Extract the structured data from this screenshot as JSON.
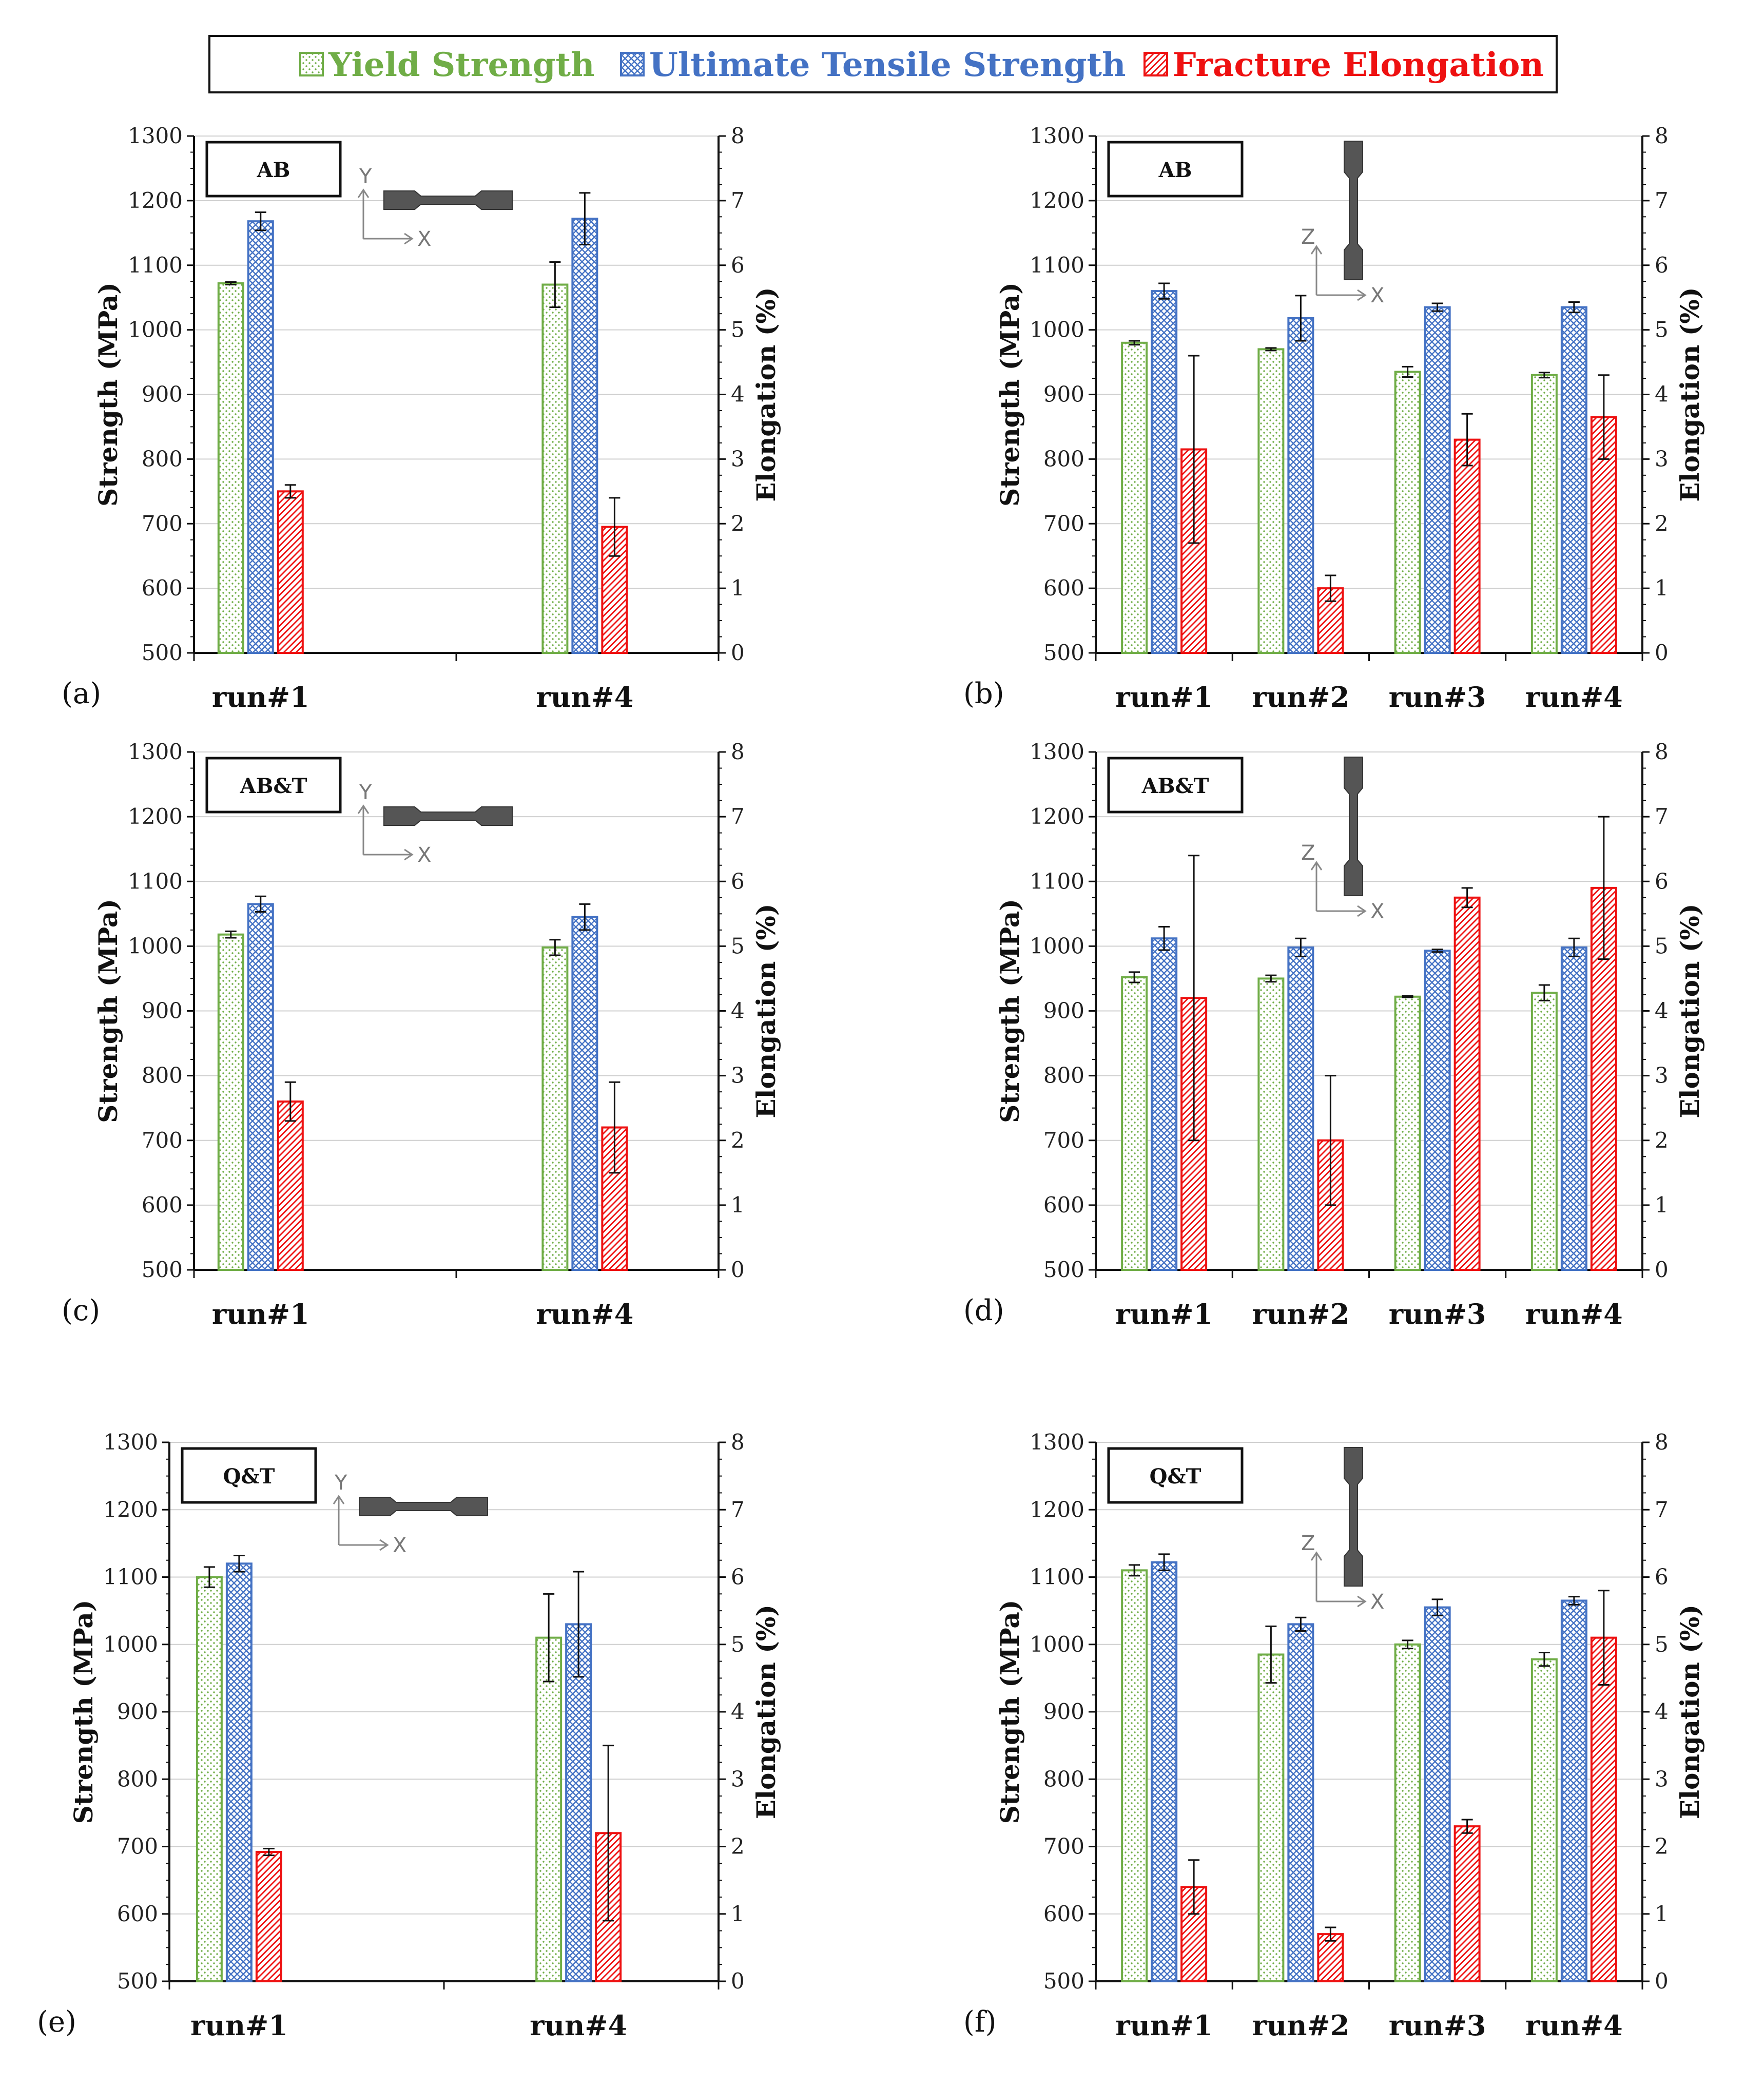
{
  "legend": {
    "items": [
      {
        "label": "Yield Strength",
        "color": "#70ad47",
        "pattern": "dots"
      },
      {
        "label": "Ultimate Tensile Strength",
        "color": "#4472c4",
        "pattern": "cross"
      },
      {
        "label": "Fracture Elongation",
        "color": "#ee1111",
        "pattern": "diag"
      }
    ]
  },
  "chart_data": [
    {
      "type": "bar",
      "panel_label": "(a)",
      "condition": "AB",
      "direction": "Y",
      "axis_h": "X",
      "axis_v": "Y",
      "categories": [
        "run#1",
        "run#4"
      ],
      "ylabel": "Strength (MPa)",
      "y2label": "Elongation (%)",
      "ylim": [
        500,
        1300
      ],
      "y2lim": [
        0,
        8
      ],
      "yticks": [
        "500",
        "600",
        "700",
        "800",
        "900",
        "1000",
        "1100",
        "1200",
        "1300"
      ],
      "y2ticks": [
        "0",
        "1",
        "2",
        "3",
        "4",
        "5",
        "6",
        "7",
        "8"
      ],
      "series": [
        {
          "name": "Yield Strength",
          "axis": "left",
          "values": [
            1072,
            1070
          ],
          "errors": [
            2,
            35
          ]
        },
        {
          "name": "Ultimate Tensile Strength",
          "axis": "left",
          "values": [
            1168,
            1172
          ],
          "errors": [
            14,
            40
          ]
        },
        {
          "name": "Fracture Elongation",
          "axis": "right",
          "values": [
            2.5,
            1.95
          ],
          "errors": [
            0.1,
            0.45
          ]
        }
      ]
    },
    {
      "type": "bar",
      "panel_label": "(b)",
      "condition": "AB",
      "direction": "Z",
      "axis_h": "X",
      "axis_v": "Z",
      "categories": [
        "run#1",
        "run#2",
        "run#3",
        "run#4"
      ],
      "ylabel": "Strength (MPa)",
      "y2label": "Elongation (%)",
      "ylim": [
        500,
        1300
      ],
      "y2lim": [
        0,
        8
      ],
      "yticks": [
        "500",
        "600",
        "700",
        "800",
        "900",
        "1000",
        "1100",
        "1200",
        "1300"
      ],
      "y2ticks": [
        "0",
        "1",
        "2",
        "3",
        "4",
        "5",
        "6",
        "7",
        "8"
      ],
      "series": [
        {
          "name": "Yield Strength",
          "axis": "left",
          "values": [
            980,
            970,
            935,
            930
          ],
          "errors": [
            3,
            2,
            8,
            4
          ]
        },
        {
          "name": "Ultimate Tensile Strength",
          "axis": "left",
          "values": [
            1060,
            1018,
            1035,
            1035
          ],
          "errors": [
            12,
            35,
            6,
            8
          ]
        },
        {
          "name": "Fracture Elongation",
          "axis": "right",
          "values": [
            3.15,
            1.0,
            3.3,
            3.65
          ],
          "errors": [
            1.45,
            0.2,
            0.4,
            0.65
          ]
        }
      ]
    },
    {
      "type": "bar",
      "panel_label": "(c)",
      "condition": "AB&T",
      "direction": "Y",
      "axis_h": "X",
      "axis_v": "Y",
      "categories": [
        "run#1",
        "run#4"
      ],
      "ylabel": "Strength (MPa)",
      "y2label": "Elongation (%)",
      "ylim": [
        500,
        1300
      ],
      "y2lim": [
        0,
        8
      ],
      "yticks": [
        "500",
        "600",
        "700",
        "800",
        "900",
        "1000",
        "1100",
        "1200",
        "1300"
      ],
      "y2ticks": [
        "0",
        "1",
        "2",
        "3",
        "4",
        "5",
        "6",
        "7",
        "8"
      ],
      "series": [
        {
          "name": "Yield Strength",
          "axis": "left",
          "values": [
            1018,
            998
          ],
          "errors": [
            5,
            12
          ]
        },
        {
          "name": "Ultimate Tensile Strength",
          "axis": "left",
          "values": [
            1065,
            1045
          ],
          "errors": [
            12,
            20
          ]
        },
        {
          "name": "Fracture Elongation",
          "axis": "right",
          "values": [
            2.6,
            2.2
          ],
          "errors": [
            0.3,
            0.7
          ]
        }
      ]
    },
    {
      "type": "bar",
      "panel_label": "(d)",
      "condition": "AB&T",
      "direction": "Z",
      "axis_h": "X",
      "axis_v": "Z",
      "categories": [
        "run#1",
        "run#2",
        "run#3",
        "run#4"
      ],
      "ylabel": "Strength (MPa)",
      "y2label": "Elongation (%)",
      "ylim": [
        500,
        1300
      ],
      "y2lim": [
        0,
        8
      ],
      "yticks": [
        "500",
        "600",
        "700",
        "800",
        "900",
        "1000",
        "1100",
        "1200",
        "1300"
      ],
      "y2ticks": [
        "0",
        "1",
        "2",
        "3",
        "4",
        "5",
        "6",
        "7",
        "8"
      ],
      "series": [
        {
          "name": "Yield Strength",
          "axis": "left",
          "values": [
            952,
            950,
            922,
            928
          ],
          "errors": [
            8,
            5,
            1,
            12
          ]
        },
        {
          "name": "Ultimate Tensile Strength",
          "axis": "left",
          "values": [
            1012,
            998,
            993,
            998
          ],
          "errors": [
            18,
            14,
            2,
            14
          ]
        },
        {
          "name": "Fracture Elongation",
          "axis": "right",
          "values": [
            4.2,
            2.0,
            5.75,
            5.9
          ],
          "errors": [
            2.2,
            1.0,
            0.15,
            1.1
          ]
        }
      ]
    },
    {
      "type": "bar",
      "panel_label": "(e)",
      "condition": "Q&T",
      "direction": "Y",
      "axis_h": "X",
      "axis_v": "Y",
      "categories": [
        "run#1",
        "run#4"
      ],
      "ylabel": "Strength (MPa)",
      "y2label": "Elongation (%)",
      "ylim": [
        500,
        1300
      ],
      "y2lim": [
        0,
        8
      ],
      "yticks": [
        "500",
        "600",
        "700",
        "800",
        "900",
        "1000",
        "1100",
        "1200",
        "1300"
      ],
      "y2ticks": [
        "0",
        "1",
        "2",
        "3",
        "4",
        "5",
        "6",
        "7",
        "8"
      ],
      "series": [
        {
          "name": "Yield Strength",
          "axis": "left",
          "values": [
            1100,
            1010
          ],
          "errors": [
            15,
            65
          ]
        },
        {
          "name": "Ultimate Tensile Strength",
          "axis": "left",
          "values": [
            1120,
            1030
          ],
          "errors": [
            12,
            78
          ]
        },
        {
          "name": "Fracture Elongation",
          "axis": "right",
          "values": [
            1.92,
            2.2
          ],
          "errors": [
            0.05,
            1.3
          ]
        }
      ]
    },
    {
      "type": "bar",
      "panel_label": "(f)",
      "condition": "Q&T",
      "direction": "Z",
      "axis_h": "X",
      "axis_v": "Z",
      "categories": [
        "run#1",
        "run#2",
        "run#3",
        "run#4"
      ],
      "ylabel": "Strength (MPa)",
      "y2label": "Elongation (%)",
      "ylim": [
        500,
        1300
      ],
      "y2lim": [
        0,
        8
      ],
      "yticks": [
        "500",
        "600",
        "700",
        "800",
        "900",
        "1000",
        "1100",
        "1200",
        "1300"
      ],
      "y2ticks": [
        "0",
        "1",
        "2",
        "3",
        "4",
        "5",
        "6",
        "7",
        "8"
      ],
      "series": [
        {
          "name": "Yield Strength",
          "axis": "left",
          "values": [
            1110,
            985,
            1000,
            978
          ],
          "errors": [
            8,
            42,
            6,
            10
          ]
        },
        {
          "name": "Ultimate Tensile Strength",
          "axis": "left",
          "values": [
            1122,
            1030,
            1055,
            1065
          ],
          "errors": [
            12,
            10,
            12,
            6
          ]
        },
        {
          "name": "Fracture Elongation",
          "axis": "right",
          "values": [
            1.4,
            0.7,
            2.3,
            5.1
          ],
          "errors": [
            0.4,
            0.1,
            0.1,
            0.7
          ]
        }
      ]
    }
  ]
}
